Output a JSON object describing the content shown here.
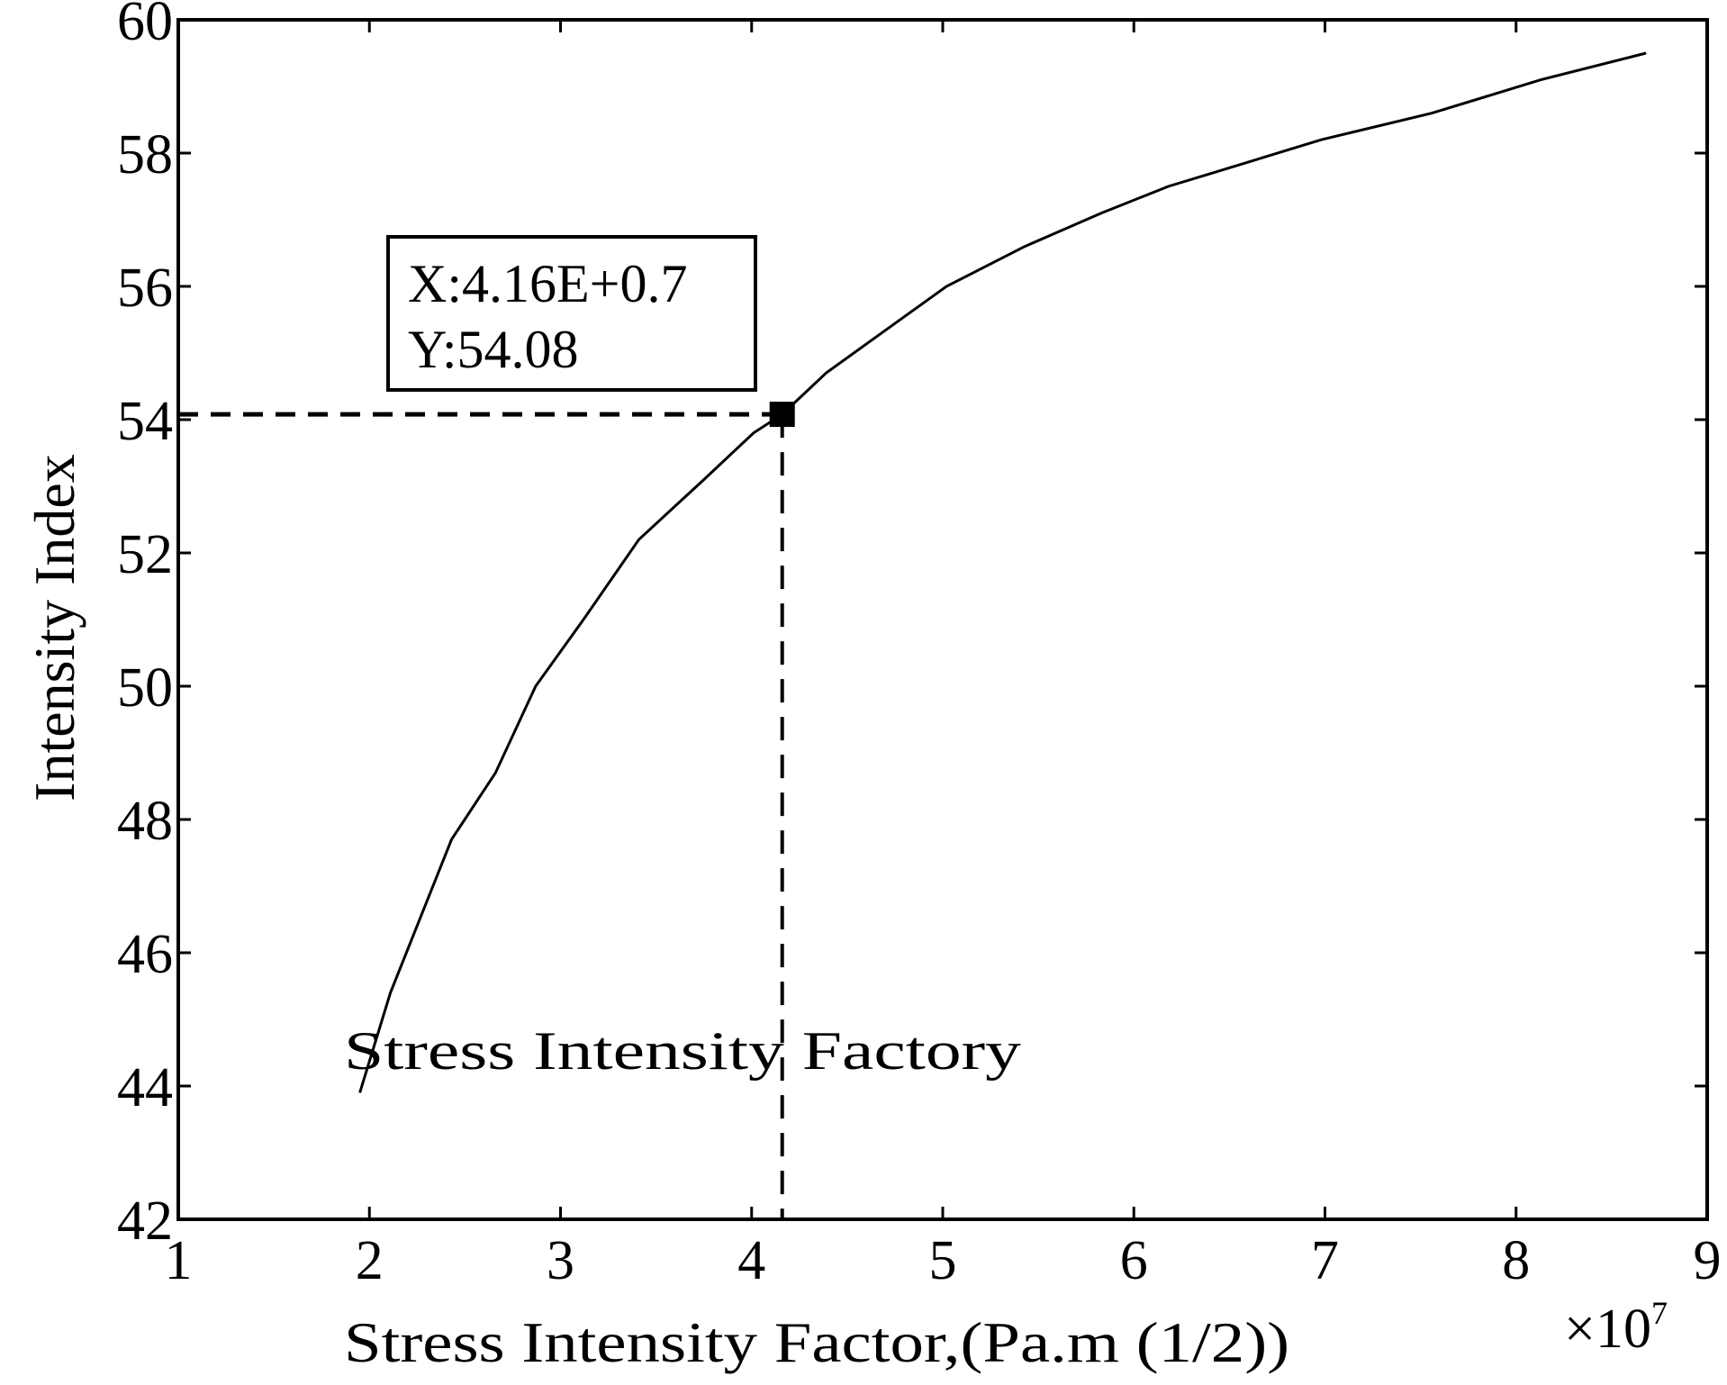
{
  "chart_data": {
    "type": "line",
    "title": "",
    "xlabel": "Stress Intensity Factor,(Pa.m (1/2))",
    "xlabel_main": "Stress Intensity Factor,(Pa",
    "xlabel_dot": "·",
    "xlabel_m": "m",
    "xlabel_sup": "(1/2)",
    "xlabel_close": ")",
    "x_multiplier": "×10",
    "x_multiplier_exp": "7",
    "ylabel": "Intensity Index",
    "xlim": [
      1,
      9
    ],
    "ylim": [
      42,
      60
    ],
    "xticks": [
      1,
      2,
      3,
      4,
      5,
      6,
      7,
      8,
      9
    ],
    "yticks": [
      42,
      44,
      46,
      48,
      50,
      52,
      54,
      56,
      58,
      60
    ],
    "grid": false,
    "series": [
      {
        "color": "#000000",
        "x": [
          1.95,
          2.11,
          2.43,
          2.66,
          2.87,
          3.12,
          3.41,
          3.75,
          4.01,
          4.16,
          4.39,
          4.68,
          5.02,
          5.43,
          5.83,
          6.18,
          6.41,
          6.98,
          7.56,
          8.13,
          8.68
        ],
        "y": [
          43.9,
          45.4,
          47.7,
          48.7,
          50.0,
          51.0,
          52.2,
          53.1,
          53.8,
          54.08,
          54.7,
          55.3,
          56.0,
          56.6,
          57.1,
          57.5,
          57.7,
          58.2,
          58.6,
          59.1,
          59.5
        ]
      }
    ],
    "marker": {
      "x": 4.16,
      "y": 54.08
    },
    "datatip": {
      "line1": "X:4.16E+0.7",
      "line2": "Y:54.08"
    },
    "annotation": "Stress Intensity Factory"
  }
}
